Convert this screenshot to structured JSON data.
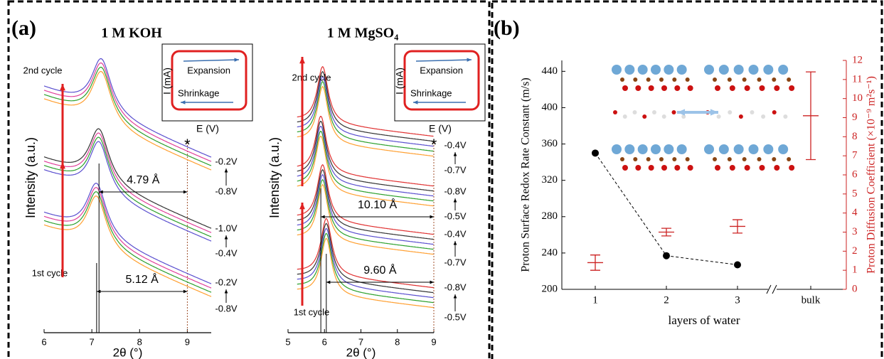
{
  "panel_labels": [
    "(a)",
    "(b)"
  ],
  "chart_data": [
    {
      "type": "xrd",
      "title": "1 M KOH",
      "x_label": "2θ (°)",
      "y_label": "Intensity (a.u.)",
      "xlim": [
        6,
        9.5
      ],
      "xticks": [
        6,
        7,
        8,
        9
      ],
      "groups": [
        {
          "peak": 7.2,
          "colors": [
            "#5a4fcf",
            "#e0409a",
            "#2ca02c",
            "#ff9f30"
          ]
        },
        {
          "peak": 7.15,
          "colors": [
            "#333333",
            "#e0409a",
            "#2ca02c",
            "#5a4fcf"
          ]
        },
        {
          "peak": 7.1,
          "colors": [
            "#5a4fcf",
            "#e0409a",
            "#2ca02c",
            "#ff9f30"
          ]
        }
      ],
      "reference_line": 9,
      "reference_label": "*",
      "spacings": [
        "4.79 Å",
        "5.12 Å"
      ],
      "cycle_labels": [
        "2nd cycle",
        "1st cycle"
      ],
      "voltage_labels": [
        "-0.2V",
        "-0.8V",
        "-1.0V",
        "-0.4V",
        "-0.2V",
        "-0.8V"
      ],
      "inset": {
        "top": "Expansion",
        "bottom": "Shrinkage",
        "x_label": "E (V)",
        "y_label": "I (mA)"
      }
    },
    {
      "type": "xrd",
      "title": "1 M MgSO₄",
      "x_label": "2θ (°)",
      "y_label": "Intensity (a.u.)",
      "xlim": [
        5,
        9
      ],
      "xticks": [
        5,
        6,
        7,
        8,
        9
      ],
      "groups": [
        {
          "peak": 5.95,
          "colors": [
            "#e03030",
            "#333333",
            "#5a4fcf",
            "#2ca02c",
            "#ff9f30"
          ]
        },
        {
          "peak": 5.9,
          "colors": [
            "#e03030",
            "#333333",
            "#5a4fcf",
            "#2ca02c",
            "#ff9f30"
          ]
        },
        {
          "peak": 5.95,
          "colors": [
            "#e03030",
            "#333333",
            "#5a4fcf",
            "#2ca02c",
            "#ff9f30"
          ]
        },
        {
          "peak": 6.05,
          "colors": [
            "#e03030",
            "#333333",
            "#5a4fcf",
            "#2ca02c",
            "#ff9f30"
          ]
        }
      ],
      "reference_line": 9,
      "reference_label": "*",
      "spacings": [
        "10.10 Å",
        "9.60 Å"
      ],
      "cycle_labels": [
        "2nd cycle",
        "1st cycle"
      ],
      "voltage_labels": [
        "-0.4V",
        "-0.7V",
        "-0.8V",
        "-0.5V",
        "-0.4V",
        "-0.7V",
        "-0.8V",
        "-0.5V"
      ],
      "inset": {
        "top": "Expansion",
        "bottom": "Shrinkage",
        "x_label": "E (V)",
        "y_label": "I (mA)"
      }
    },
    {
      "type": "scatter",
      "x_label": "layers of water",
      "y_label": "Proton Surface Redox Rate Constant (m/s)",
      "y2_label": "Proton Diffusion Coefficient (×10⁻⁹ m²s⁻¹)",
      "categories": [
        "1",
        "2",
        "3",
        "bulk"
      ],
      "ylim": [
        200,
        452
      ],
      "yticks": [
        200,
        240,
        280,
        320,
        360,
        400,
        440
      ],
      "y2lim": [
        0,
        12
      ],
      "y2ticks": [
        0,
        1,
        2,
        3,
        4,
        5,
        6,
        7,
        8,
        9,
        10,
        11,
        12
      ],
      "series": [
        {
          "color": "#000000",
          "values": [
            350,
            237,
            227,
            null
          ]
        },
        {
          "color": "#cc2222",
          "axis": "y2",
          "values": [
            1.4,
            3.0,
            3.3,
            9.1
          ],
          "errors": [
            0.4,
            0.2,
            0.35,
            2.3
          ]
        }
      ]
    }
  ]
}
